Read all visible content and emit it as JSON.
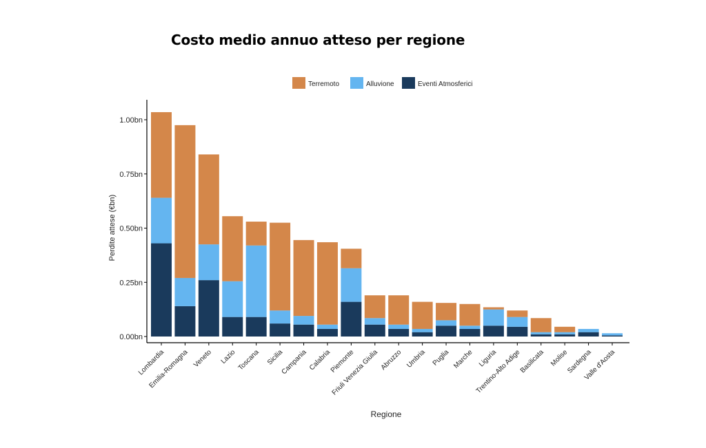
{
  "page": {
    "title": "Costo medio annuo atteso per regione"
  },
  "colors": {
    "Terremoto": "#D4874A",
    "Alluvione": "#64B5F0",
    "Eventi Atmosferici": "#1A3A5C",
    "axis": "#000000",
    "text": "#222222"
  },
  "chart_data": {
    "type": "bar",
    "stacked": true,
    "title": "",
    "xlabel": "Regione",
    "ylabel": "Perdite attese (€bn)",
    "ylim": [
      0,
      1.07
    ],
    "yticks": [
      0,
      0.25,
      0.5,
      0.75,
      1.0
    ],
    "ytick_labels": [
      "0.00bn",
      "0.25bn",
      "0.50bn",
      "0.75bn",
      "1.00bn"
    ],
    "grid": false,
    "legend": "top",
    "categories": [
      "Lombardia",
      "Emilia-Romagna",
      "Veneto",
      "Lazio",
      "Toscana",
      "Sicilia",
      "Campania",
      "Calabria",
      "Piemonte",
      "Friuli Venezia Giulia",
      "Abruzzo",
      "Umbria",
      "Puglia",
      "Marche",
      "Liguria",
      "Trentino-Alto Adige",
      "Basilicata",
      "Molise",
      "Sardegna",
      "Valle d'Aosta"
    ],
    "series": [
      {
        "name": "Eventi Atmosferici",
        "values": [
          0.43,
          0.14,
          0.26,
          0.09,
          0.09,
          0.06,
          0.055,
          0.035,
          0.16,
          0.055,
          0.035,
          0.02,
          0.05,
          0.035,
          0.05,
          0.045,
          0.01,
          0.01,
          0.02,
          0.005
        ]
      },
      {
        "name": "Alluvione",
        "values": [
          0.21,
          0.13,
          0.165,
          0.165,
          0.33,
          0.06,
          0.04,
          0.02,
          0.155,
          0.03,
          0.02,
          0.015,
          0.025,
          0.015,
          0.075,
          0.045,
          0.01,
          0.01,
          0.015,
          0.01
        ]
      },
      {
        "name": "Terremoto",
        "values": [
          0.395,
          0.705,
          0.415,
          0.3,
          0.11,
          0.405,
          0.35,
          0.38,
          0.09,
          0.105,
          0.135,
          0.125,
          0.08,
          0.1,
          0.01,
          0.03,
          0.065,
          0.025,
          0.0,
          0.0
        ]
      }
    ],
    "legend_order": [
      "Terremoto",
      "Alluvione",
      "Eventi Atmosferici"
    ]
  }
}
